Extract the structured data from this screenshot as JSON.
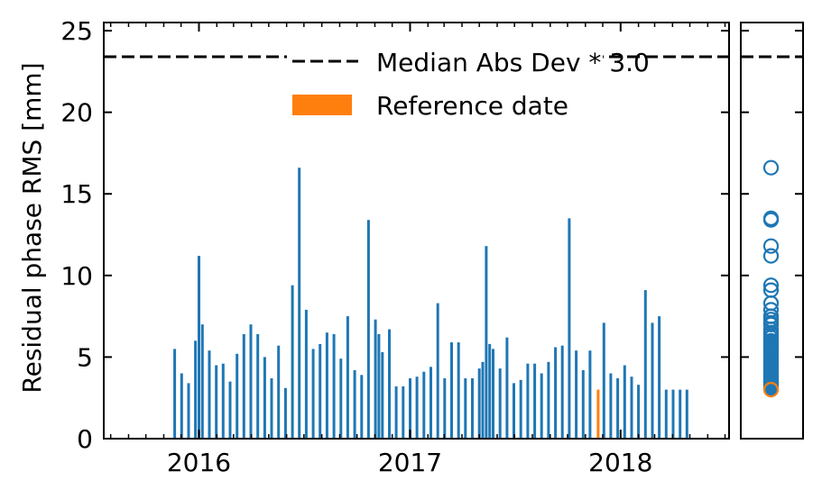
{
  "chart_data": [
    {
      "type": "bar",
      "title": "",
      "xlabel": "",
      "ylabel": "Residual phase RMS [mm]",
      "ylim": [
        0,
        25.5
      ],
      "yticks": [
        0,
        5,
        10,
        15,
        20,
        25
      ],
      "xticks": [
        {
          "label": "2016",
          "date": "2016-01-01"
        },
        {
          "label": "2017",
          "date": "2017-01-01"
        },
        {
          "label": "2018",
          "date": "2018-01-01"
        }
      ],
      "xlim": [
        "2015-07-20",
        "2018-07-08"
      ],
      "tick_direction": "in",
      "grid": false,
      "legend": {
        "placement": "top-right"
      },
      "threshold": {
        "label": "Median Abs Dev * 3.0",
        "value": 23.4,
        "style": "dashed",
        "color": "#000000"
      },
      "reference": {
        "label": "Reference date",
        "date": "2017-11-23",
        "value": 3.0,
        "color": "#ff7f0e"
      },
      "bar_color": "#1f77b4",
      "series": [
        {
          "x": [
            "2015-11-20",
            "2015-12-02",
            "2015-12-14",
            "2015-12-26",
            "2016-01-01",
            "2016-01-07",
            "2016-01-19",
            "2016-01-31",
            "2016-02-12",
            "2016-02-24",
            "2016-03-07",
            "2016-03-19",
            "2016-03-31",
            "2016-04-12",
            "2016-04-24",
            "2016-05-06",
            "2016-05-18",
            "2016-05-30",
            "2016-06-11",
            "2016-06-23",
            "2016-07-05",
            "2016-07-17",
            "2016-07-29",
            "2016-08-10",
            "2016-08-22",
            "2016-09-03",
            "2016-09-15",
            "2016-09-27",
            "2016-10-09",
            "2016-10-21",
            "2016-11-02",
            "2016-11-08",
            "2016-11-14",
            "2016-11-26",
            "2016-12-08",
            "2016-12-20",
            "2017-01-01",
            "2017-01-13",
            "2017-01-25",
            "2017-02-06",
            "2017-02-18",
            "2017-03-02",
            "2017-03-14",
            "2017-03-26",
            "2017-04-07",
            "2017-04-19",
            "2017-05-01",
            "2017-05-07",
            "2017-05-13",
            "2017-05-19",
            "2017-05-25",
            "2017-06-06",
            "2017-06-18",
            "2017-06-30",
            "2017-07-12",
            "2017-07-24",
            "2017-08-05",
            "2017-08-17",
            "2017-08-29",
            "2017-09-10",
            "2017-09-22",
            "2017-10-04",
            "2017-10-16",
            "2017-10-28",
            "2017-11-09",
            "2017-12-03",
            "2017-12-15",
            "2017-12-27",
            "2018-01-08",
            "2018-01-20",
            "2018-02-01",
            "2018-02-13",
            "2018-02-25",
            "2018-03-09",
            "2018-03-21",
            "2018-04-02",
            "2018-04-14",
            "2018-04-26"
          ],
          "values": [
            5.5,
            4.0,
            3.4,
            6.0,
            11.2,
            7.0,
            5.4,
            4.5,
            4.6,
            3.5,
            5.2,
            6.4,
            7.0,
            6.4,
            5.0,
            3.7,
            5.7,
            3.1,
            9.4,
            16.6,
            7.9,
            5.5,
            5.8,
            6.5,
            6.4,
            4.9,
            7.5,
            4.2,
            3.9,
            13.4,
            7.3,
            6.4,
            5.3,
            6.7,
            3.2,
            3.2,
            3.7,
            3.8,
            4.1,
            4.4,
            8.3,
            3.7,
            5.9,
            5.9,
            3.7,
            3.7,
            4.3,
            4.7,
            11.8,
            5.8,
            5.5,
            4.3,
            6.2,
            3.4,
            3.6,
            4.6,
            4.6,
            4.0,
            4.7,
            5.6,
            5.7,
            13.5,
            5.4,
            4.2,
            5.4,
            7.1,
            4.0,
            3.7,
            4.5,
            3.8,
            3.3,
            9.1,
            7.1,
            7.5,
            3.0,
            3.0,
            3.0,
            3.0
          ]
        }
      ]
    },
    {
      "type": "scatter",
      "title": "",
      "xlabel": "",
      "ylabel": "",
      "ylim": [
        0,
        25.5
      ],
      "marker": "hollow-circle",
      "series": [
        {
          "values": [
            16.6,
            13.5,
            13.4,
            11.8,
            11.2,
            9.4,
            9.1,
            8.3,
            7.9,
            7.5,
            7.5,
            7.3,
            7.1,
            7.0,
            7.0,
            6.7,
            6.5,
            6.4,
            6.4,
            6.4,
            6.2,
            6.0,
            5.9,
            5.9,
            5.8,
            5.7,
            5.7,
            5.6,
            5.5,
            5.5,
            5.4,
            5.4,
            5.3,
            5.2,
            5.0,
            4.9,
            4.7,
            4.6,
            4.6,
            4.5,
            4.5,
            4.4,
            4.3,
            4.3,
            4.2,
            4.2,
            4.1,
            4.0,
            4.0,
            3.9,
            3.8,
            3.8,
            3.7,
            3.7,
            3.7,
            3.6,
            3.5,
            3.4,
            3.4,
            3.3,
            3.2,
            3.2,
            3.1
          ],
          "color": "#1f77b4"
        },
        {
          "values": [
            3.0
          ],
          "color": "#ff7f0e"
        }
      ]
    }
  ]
}
